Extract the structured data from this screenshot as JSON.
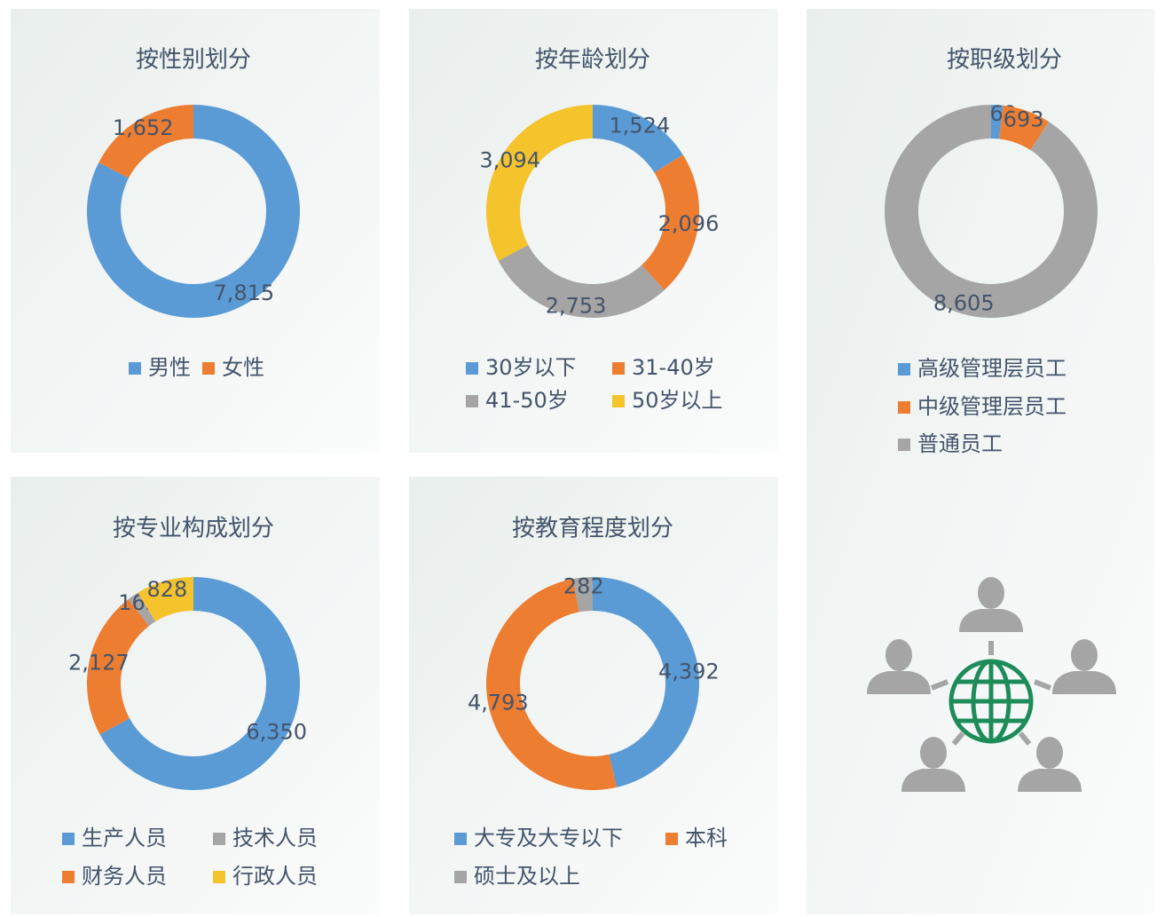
{
  "chart_data": [
    {
      "type": "pie",
      "title": "按性别划分",
      "categories": [
        "男性",
        "女性"
      ],
      "values": [
        7815,
        1652
      ],
      "value_labels": [
        "7,815",
        "1,652"
      ],
      "colors": [
        "#5b9bd5",
        "#ed7d31"
      ]
    },
    {
      "type": "pie",
      "title": "按年龄划分",
      "categories": [
        "30岁以下",
        "31-40岁",
        "41-50岁",
        "50岁以上"
      ],
      "values": [
        1524,
        2096,
        2753,
        3094
      ],
      "value_labels": [
        "1,524",
        "2,096",
        "2,753",
        "3,094"
      ],
      "colors": [
        "#5b9bd5",
        "#ed7d31",
        "#a5a5a5",
        "#f5c32c"
      ]
    },
    {
      "type": "pie",
      "title": "按职级划分",
      "categories": [
        "高级管理层员工",
        "中级管理层员工",
        "普通员工"
      ],
      "values": [
        169,
        693,
        8605
      ],
      "value_labels": [
        "169",
        "693",
        "8,605"
      ],
      "colors": [
        "#5b9bd5",
        "#ed7d31",
        "#a5a5a5"
      ]
    },
    {
      "type": "pie",
      "title": "按专业构成划分",
      "categories": [
        "生产人员",
        "财务人员",
        "技术人员",
        "行政人员"
      ],
      "values": [
        6350,
        2127,
        162,
        828
      ],
      "value_labels": [
        "6,350",
        "2,127",
        "162",
        "828"
      ],
      "colors": [
        "#5b9bd5",
        "#ed7d31",
        "#a5a5a5",
        "#f5c32c"
      ]
    },
    {
      "type": "pie",
      "title": "按教育程度划分",
      "categories": [
        "大专及大专以下",
        "本科",
        "硕士及以上"
      ],
      "values": [
        4392,
        4793,
        282
      ],
      "value_labels": [
        "4,392",
        "4,793",
        "282"
      ],
      "colors": [
        "#5b9bd5",
        "#ed7d31",
        "#a5a5a5"
      ]
    }
  ]
}
